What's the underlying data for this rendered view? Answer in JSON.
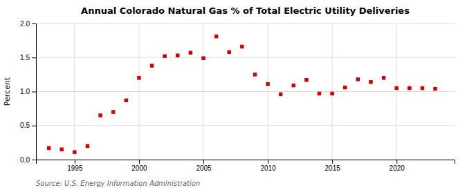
{
  "chart_data": {
    "type": "scatter",
    "title": "Annual Colorado Natural Gas % of Total Electric Utility Deliveries",
    "ylabel": "Percent",
    "source": "Source: U.S. Energy Information Administration",
    "x": [
      1993,
      1994,
      1995,
      1996,
      1997,
      1998,
      1999,
      2000,
      2001,
      2002,
      2003,
      2004,
      2005,
      2006,
      2007,
      2008,
      2009,
      2010,
      2011,
      2012,
      2013,
      2014,
      2015,
      2016,
      2017,
      2018,
      2019,
      2020,
      2021,
      2022,
      2023
    ],
    "values": [
      0.17,
      0.15,
      0.11,
      0.2,
      0.65,
      0.7,
      0.87,
      1.2,
      1.38,
      1.52,
      1.53,
      1.57,
      1.49,
      1.81,
      1.58,
      1.66,
      1.25,
      1.11,
      0.96,
      1.09,
      1.17,
      0.97,
      0.97,
      1.06,
      1.18,
      1.14,
      1.2,
      1.05,
      1.05,
      1.05,
      1.04
    ],
    "color": "#cc0000",
    "marker": "square",
    "xlim": [
      1992.0,
      2024.5
    ],
    "xticks": [
      1995,
      2000,
      2005,
      2010,
      2015,
      2020
    ],
    "ylim": [
      0.0,
      2.0
    ],
    "yticks": [
      {
        "value": 0.0,
        "label": "0.0"
      },
      0.5,
      {
        "value": 1.0,
        "label": "1.0"
      },
      1.5,
      {
        "value": 2.0,
        "label": "2.0"
      }
    ],
    "grid": true
  }
}
